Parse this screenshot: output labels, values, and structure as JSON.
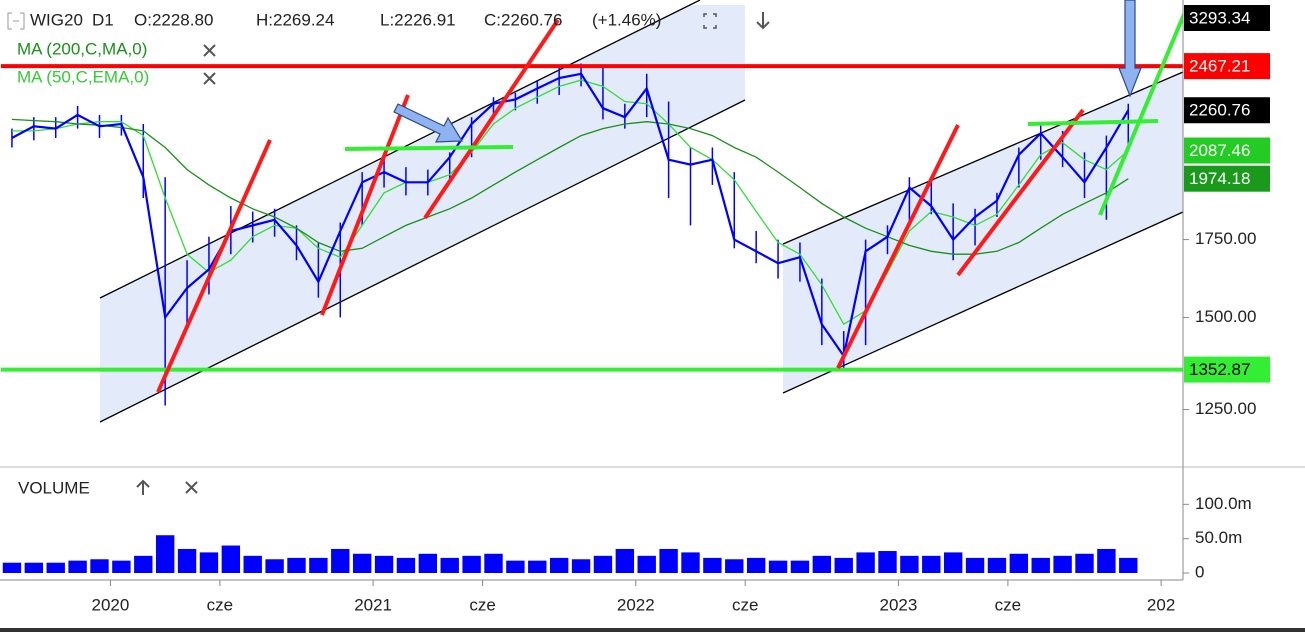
{
  "chart_data": {
    "type": "line",
    "header": {
      "symbol": "WIG20",
      "timeframe": "D1",
      "open": "O:2228.80",
      "high": "H:2269.24",
      "low": "L:2226.91",
      "close": "C:2260.76",
      "change": "(+1.46%)"
    },
    "log_scale": true,
    "xlim": [
      "2019-08",
      "2024-02"
    ],
    "x": [
      "2019-08",
      "2019-09",
      "2019-10",
      "2019-11",
      "2019-12",
      "2020-01",
      "2020-02",
      "2020-03",
      "2020-04",
      "2020-05",
      "2020-06",
      "2020-07",
      "2020-08",
      "2020-09",
      "2020-10",
      "2020-11",
      "2020-12",
      "2021-01",
      "2021-02",
      "2021-03",
      "2021-04",
      "2021-05",
      "2021-06",
      "2021-07",
      "2021-08",
      "2021-09",
      "2021-10",
      "2021-11",
      "2021-12",
      "2022-01",
      "2022-02",
      "2022-03",
      "2022-04",
      "2022-05",
      "2022-06",
      "2022-07",
      "2022-08",
      "2022-09",
      "2022-10",
      "2022-11",
      "2022-12",
      "2023-01",
      "2023-02",
      "2023-03",
      "2023-04",
      "2023-05",
      "2023-06",
      "2023-07",
      "2023-08",
      "2023-09",
      "2023-10",
      "2023-11"
    ],
    "series": [
      {
        "name": "WIG20",
        "color": "#0000ff",
        "values": [
          2140,
          2190,
          2180,
          2240,
          2190,
          2200,
          1980,
          1500,
          1590,
          1650,
          1780,
          1800,
          1820,
          1730,
          1610,
          1780,
          1960,
          2000,
          1960,
          1960,
          2060,
          2200,
          2290,
          2310,
          2360,
          2410,
          2430,
          2270,
          2230,
          2360,
          2050,
          2030,
          2050,
          1750,
          1710,
          1670,
          1690,
          1480,
          1390,
          1710,
          1760,
          1940,
          1870,
          1750,
          1830,
          1890,
          2070,
          2160,
          2060,
          1960,
          2100,
          2260.76
        ],
        "high": [
          2180,
          2230,
          2230,
          2280,
          2240,
          2240,
          2200,
          1980,
          1680,
          1760,
          1870,
          1850,
          1860,
          1800,
          1740,
          1810,
          2000,
          2060,
          2020,
          2010,
          2080,
          2230,
          2320,
          2340,
          2400,
          2460,
          2480,
          2460,
          2290,
          2430,
          2300,
          2100,
          2100,
          2000,
          1780,
          1750,
          1740,
          1620,
          1460,
          1750,
          1800,
          1980,
          1960,
          1880,
          1860,
          1920,
          2100,
          2200,
          2170,
          2080,
          2150,
          2290
        ],
        "low": [
          2100,
          2130,
          2140,
          2180,
          2140,
          2150,
          1900,
          1260,
          1480,
          1570,
          1700,
          1740,
          1760,
          1680,
          1560,
          1500,
          1800,
          1940,
          1910,
          1910,
          1960,
          2060,
          2220,
          2260,
          2290,
          2330,
          2370,
          2220,
          2180,
          2230,
          1900,
          1800,
          1950,
          1720,
          1670,
          1620,
          1610,
          1420,
          1350,
          1420,
          1700,
          1800,
          1840,
          1680,
          1730,
          1830,
          1940,
          2050,
          2020,
          1900,
          1820,
          2100
        ]
      },
      {
        "name": "MA (200,C,MA,0)",
        "color": "#1a8f1a",
        "values": [
          2220,
          2215,
          2210,
          2200,
          2195,
          2185,
          2170,
          2100,
          2010,
          1950,
          1900,
          1860,
          1830,
          1790,
          1740,
          1710,
          1720,
          1760,
          1800,
          1830,
          1860,
          1900,
          1950,
          2000,
          2050,
          2100,
          2150,
          2180,
          2200,
          2210,
          2200,
          2180,
          2150,
          2100,
          2060,
          2000,
          1940,
          1880,
          1830,
          1790,
          1760,
          1730,
          1710,
          1700,
          1700,
          1710,
          1740,
          1790,
          1840,
          1880,
          1920,
          1974.18
        ]
      },
      {
        "name": "MA (50,C,EMA,0)",
        "color": "#33dd33",
        "values": [
          2170,
          2170,
          2180,
          2200,
          2210,
          2210,
          2150,
          1900,
          1700,
          1640,
          1680,
          1760,
          1800,
          1790,
          1720,
          1690,
          1800,
          1920,
          1960,
          1960,
          1990,
          2080,
          2200,
          2270,
          2320,
          2370,
          2400,
          2370,
          2300,
          2290,
          2200,
          2100,
          2050,
          1970,
          1850,
          1740,
          1700,
          1600,
          1480,
          1520,
          1640,
          1780,
          1850,
          1830,
          1800,
          1840,
          1950,
          2070,
          2120,
          2050,
          2010,
          2087.46
        ]
      }
    ],
    "ylim": [
      1120,
      2790
    ],
    "yticks": [
      {
        "value": 1250,
        "label": "1250.00"
      },
      {
        "value": 1500,
        "label": "1500.00"
      },
      {
        "value": 1750,
        "label": "1750.00"
      }
    ],
    "price_labels": [
      {
        "value": 3293.34,
        "color": "#000000",
        "text_color": "#ffffff"
      },
      {
        "value": 2467.21,
        "color": "#ff0000",
        "text_color": "#ffffff"
      },
      {
        "value": 2260.76,
        "color": "#000000",
        "text_color": "#ffffff"
      },
      {
        "value": 2087.46,
        "color": "#22cc22",
        "text_color": "#ffffff"
      },
      {
        "value": 1974.18,
        "color": "#1a9a1a",
        "text_color": "#ffffff"
      },
      {
        "value": 1352.87,
        "color": "#33ee33",
        "text_color": "#000000"
      }
    ],
    "xticks": [
      {
        "value": "2020-01",
        "label": "2020"
      },
      {
        "value": "2020-06",
        "label": "cze"
      },
      {
        "value": "2021-01",
        "label": "2021"
      },
      {
        "value": "2021-06",
        "label": "cze"
      },
      {
        "value": "2022-01",
        "label": "2022"
      },
      {
        "value": "2022-06",
        "label": "cze"
      },
      {
        "value": "2023-01",
        "label": "2023"
      },
      {
        "value": "2023-06",
        "label": "cze"
      },
      {
        "value": "2024-01",
        "label": "202"
      }
    ],
    "volume": {
      "type": "bar",
      "title": "VOLUME",
      "color": "#0000ff",
      "values": [
        15000000,
        15000000,
        15000000,
        18000000,
        20000000,
        18000000,
        25000000,
        55000000,
        35000000,
        30000000,
        40000000,
        25000000,
        20000000,
        22000000,
        22000000,
        35000000,
        28000000,
        25000000,
        22000000,
        28000000,
        22000000,
        25000000,
        28000000,
        18000000,
        18000000,
        22000000,
        20000000,
        25000000,
        35000000,
        25000000,
        35000000,
        30000000,
        22000000,
        20000000,
        22000000,
        18000000,
        18000000,
        25000000,
        22000000,
        30000000,
        32000000,
        25000000,
        25000000,
        30000000,
        22000000,
        22000000,
        28000000,
        22000000,
        25000000,
        28000000,
        35000000,
        22000000
      ],
      "ylim": [
        0,
        150000000
      ],
      "yticks": [
        0,
        {
          "value": 50000000,
          "label": "50.0m"
        },
        {
          "value": 100000000,
          "label": "100.0m"
        }
      ]
    }
  }
}
